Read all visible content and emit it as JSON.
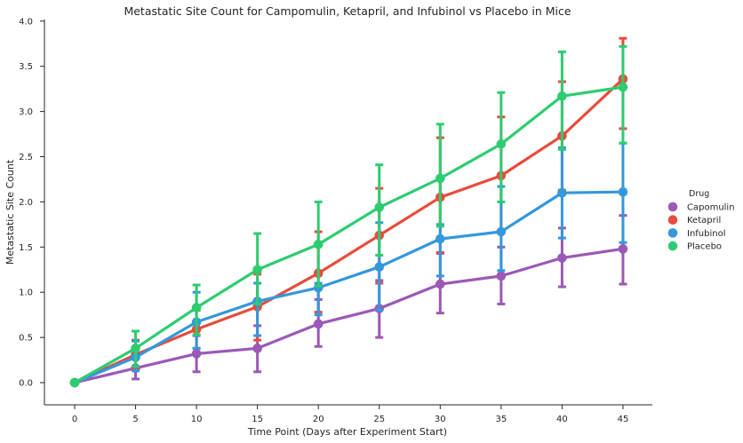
{
  "chart_data": {
    "type": "line",
    "title": "Metastatic Site Count for Campomulin, Ketapril, and Infubinol vs Placebo in Mice",
    "xlabel": "Time Point (Days after Experiment Start)",
    "ylabel": "Metastatic Site Count",
    "x": [
      0,
      5,
      10,
      15,
      20,
      25,
      30,
      35,
      40,
      45
    ],
    "x_tick_labels": [
      "0",
      "5",
      "10",
      "15",
      "20",
      "25",
      "30",
      "35",
      "40",
      "45"
    ],
    "ylim": [
      -0.22,
      4.0
    ],
    "y_ticks": [
      0.0,
      0.5,
      1.0,
      1.5,
      2.0,
      2.5,
      3.0,
      3.5,
      4.0
    ],
    "y_tick_labels": [
      "0.0",
      "0.5",
      "1.0",
      "1.5",
      "2.0",
      "2.5",
      "3.0",
      "3.5",
      "4.0"
    ],
    "grid": false,
    "legend": {
      "title": "Drug",
      "placement": "right"
    },
    "series": [
      {
        "name": "Capomulin",
        "color": "#9b59b6",
        "values": [
          0.0,
          0.16,
          0.32,
          0.38,
          0.65,
          0.82,
          1.09,
          1.18,
          1.38,
          1.48
        ],
        "err_low": [
          0.0,
          0.04,
          0.12,
          0.12,
          0.4,
          0.5,
          0.77,
          0.87,
          1.06,
          1.09
        ],
        "err_high": [
          0.0,
          0.28,
          0.52,
          0.63,
          0.92,
          1.13,
          1.43,
          1.5,
          1.71,
          1.85
        ]
      },
      {
        "name": "Ketapril",
        "color": "#e74c3c",
        "values": [
          0.0,
          0.31,
          0.59,
          0.84,
          1.21,
          1.63,
          2.05,
          2.29,
          2.73,
          3.36
        ],
        "err_low": [
          0.0,
          0.15,
          0.38,
          0.47,
          0.78,
          1.1,
          1.44,
          1.68,
          2.13,
          2.81
        ],
        "err_high": [
          0.0,
          0.47,
          0.8,
          1.2,
          1.67,
          2.15,
          2.71,
          2.94,
          3.33,
          3.81
        ]
      },
      {
        "name": "Infubinol",
        "color": "#3498db",
        "values": [
          0.0,
          0.28,
          0.67,
          0.9,
          1.05,
          1.28,
          1.59,
          1.67,
          2.1,
          2.11
        ],
        "err_low": [
          0.0,
          0.13,
          0.38,
          0.52,
          0.75,
          0.8,
          1.18,
          1.24,
          1.6,
          1.55
        ],
        "err_high": [
          0.0,
          0.46,
          1.0,
          1.1,
          1.1,
          1.77,
          1.75,
          2.17,
          2.6,
          2.65
        ]
      },
      {
        "name": "Placebo",
        "color": "#2ecc71",
        "values": [
          0.0,
          0.38,
          0.83,
          1.25,
          1.53,
          1.94,
          2.26,
          2.64,
          3.17,
          3.27
        ],
        "err_low": [
          0.0,
          0.18,
          0.53,
          0.87,
          1.07,
          1.41,
          1.73,
          2.0,
          2.58,
          2.65
        ],
        "err_high": [
          0.0,
          0.57,
          1.08,
          1.65,
          2.0,
          2.41,
          2.86,
          3.21,
          3.66,
          3.72
        ]
      }
    ]
  }
}
